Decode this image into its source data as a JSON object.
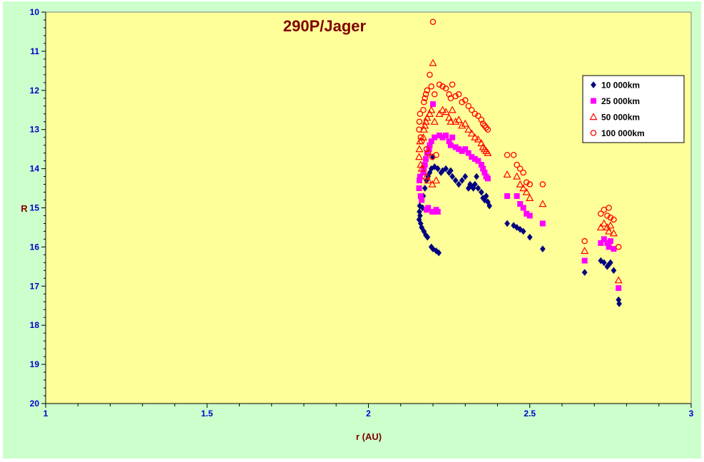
{
  "colors": {
    "outer_background": "#ccffcc",
    "plot_background": "#ffff99",
    "axis": "#000000",
    "tick_label": "#0000cc",
    "title": "#800000"
  },
  "chart_data": {
    "type": "scatter",
    "title": "290P/Jager",
    "xlabel": "r (AU)",
    "ylabel": "R",
    "xlim": [
      1,
      3
    ],
    "ylim": [
      10,
      20
    ],
    "y_inverted": true,
    "x_ticks": [
      "1",
      "1.5",
      "2",
      "2.5",
      "3"
    ],
    "y_ticks": [
      "10",
      "11",
      "12",
      "13",
      "14",
      "15",
      "16",
      "17",
      "18",
      "19",
      "20"
    ],
    "grid": false,
    "legend_position": "top-right",
    "series": [
      {
        "name": "10 000km",
        "marker": "diamond",
        "color": "#000080",
        "points": [
          [
            2.157,
            15.3
          ],
          [
            2.158,
            15.1
          ],
          [
            2.159,
            14.95
          ],
          [
            2.16,
            15.2
          ],
          [
            2.162,
            15.4
          ],
          [
            2.165,
            15.5
          ],
          [
            2.168,
            15.0
          ],
          [
            2.17,
            14.7
          ],
          [
            2.172,
            15.6
          ],
          [
            2.175,
            14.5
          ],
          [
            2.178,
            15.7
          ],
          [
            2.18,
            14.3
          ],
          [
            2.183,
            15.75
          ],
          [
            2.185,
            14.2
          ],
          [
            2.19,
            14.1
          ],
          [
            2.195,
            14.0
          ],
          [
            2.195,
            16.0
          ],
          [
            2.2,
            13.7
          ],
          [
            2.2,
            16.05
          ],
          [
            2.205,
            13.95
          ],
          [
            2.21,
            16.1
          ],
          [
            2.215,
            14.0
          ],
          [
            2.218,
            16.15
          ],
          [
            2.225,
            14.1
          ],
          [
            2.23,
            14.05
          ],
          [
            2.24,
            14.0
          ],
          [
            2.25,
            14.1
          ],
          [
            2.255,
            14.05
          ],
          [
            2.26,
            14.2
          ],
          [
            2.27,
            14.3
          ],
          [
            2.28,
            14.4
          ],
          [
            2.29,
            14.3
          ],
          [
            2.3,
            14.2
          ],
          [
            2.31,
            14.5
          ],
          [
            2.315,
            14.4
          ],
          [
            2.32,
            14.45
          ],
          [
            2.325,
            14.5
          ],
          [
            2.33,
            14.4
          ],
          [
            2.335,
            14.2
          ],
          [
            2.34,
            14.5
          ],
          [
            2.35,
            14.6
          ],
          [
            2.355,
            14.75
          ],
          [
            2.36,
            14.8
          ],
          [
            2.365,
            14.7
          ],
          [
            2.37,
            14.85
          ],
          [
            2.375,
            14.95
          ],
          [
            2.43,
            15.4
          ],
          [
            2.45,
            15.45
          ],
          [
            2.46,
            15.5
          ],
          [
            2.47,
            15.55
          ],
          [
            2.48,
            15.6
          ],
          [
            2.5,
            15.75
          ],
          [
            2.54,
            16.05
          ],
          [
            2.67,
            16.65
          ],
          [
            2.72,
            16.35
          ],
          [
            2.73,
            16.4
          ],
          [
            2.74,
            16.5
          ],
          [
            2.745,
            16.45
          ],
          [
            2.75,
            16.4
          ],
          [
            2.76,
            16.6
          ],
          [
            2.775,
            17.35
          ],
          [
            2.777,
            17.45
          ]
        ]
      },
      {
        "name": "25 000km",
        "marker": "square",
        "color": "#ff00ff",
        "points": [
          [
            2.157,
            14.5
          ],
          [
            2.158,
            14.3
          ],
          [
            2.16,
            14.2
          ],
          [
            2.162,
            14.7
          ],
          [
            2.165,
            14.8
          ],
          [
            2.17,
            14.1
          ],
          [
            2.172,
            14.0
          ],
          [
            2.175,
            13.9
          ],
          [
            2.178,
            13.75
          ],
          [
            2.18,
            15.05
          ],
          [
            2.182,
            13.6
          ],
          [
            2.185,
            15.0
          ],
          [
            2.188,
            13.5
          ],
          [
            2.19,
            13.4
          ],
          [
            2.195,
            13.3
          ],
          [
            2.198,
            15.1
          ],
          [
            2.2,
            12.35
          ],
          [
            2.205,
            13.2
          ],
          [
            2.21,
            15.05
          ],
          [
            2.215,
            15.1
          ],
          [
            2.22,
            13.15
          ],
          [
            2.23,
            13.2
          ],
          [
            2.24,
            13.15
          ],
          [
            2.25,
            13.3
          ],
          [
            2.255,
            13.4
          ],
          [
            2.26,
            13.2
          ],
          [
            2.27,
            13.45
          ],
          [
            2.28,
            13.5
          ],
          [
            2.29,
            13.55
          ],
          [
            2.3,
            13.5
          ],
          [
            2.31,
            13.6
          ],
          [
            2.32,
            13.7
          ],
          [
            2.33,
            13.75
          ],
          [
            2.34,
            13.8
          ],
          [
            2.35,
            13.9
          ],
          [
            2.355,
            14.0
          ],
          [
            2.36,
            14.1
          ],
          [
            2.365,
            14.2
          ],
          [
            2.37,
            14.25
          ],
          [
            2.43,
            14.7
          ],
          [
            2.46,
            14.7
          ],
          [
            2.47,
            14.9
          ],
          [
            2.48,
            15.0
          ],
          [
            2.49,
            15.15
          ],
          [
            2.5,
            15.2
          ],
          [
            2.54,
            15.4
          ],
          [
            2.67,
            16.35
          ],
          [
            2.72,
            15.9
          ],
          [
            2.73,
            15.8
          ],
          [
            2.74,
            15.9
          ],
          [
            2.745,
            16.0
          ],
          [
            2.75,
            15.85
          ],
          [
            2.76,
            16.05
          ],
          [
            2.775,
            17.05
          ]
        ]
      },
      {
        "name": "50 000km",
        "marker": "triangle",
        "color": "#ff0000",
        "points": [
          [
            2.157,
            13.7
          ],
          [
            2.158,
            13.5
          ],
          [
            2.16,
            13.3
          ],
          [
            2.162,
            13.9
          ],
          [
            2.165,
            14.0
          ],
          [
            2.17,
            13.2
          ],
          [
            2.172,
            13.0
          ],
          [
            2.175,
            12.9
          ],
          [
            2.178,
            12.8
          ],
          [
            2.18,
            14.2
          ],
          [
            2.182,
            12.7
          ],
          [
            2.185,
            14.3
          ],
          [
            2.19,
            12.6
          ],
          [
            2.195,
            12.5
          ],
          [
            2.198,
            14.4
          ],
          [
            2.2,
            11.3
          ],
          [
            2.205,
            12.8
          ],
          [
            2.21,
            14.3
          ],
          [
            2.22,
            12.6
          ],
          [
            2.23,
            12.5
          ],
          [
            2.24,
            12.55
          ],
          [
            2.25,
            12.7
          ],
          [
            2.255,
            12.8
          ],
          [
            2.26,
            12.5
          ],
          [
            2.27,
            12.8
          ],
          [
            2.28,
            12.75
          ],
          [
            2.29,
            12.9
          ],
          [
            2.3,
            12.85
          ],
          [
            2.31,
            13.0
          ],
          [
            2.32,
            13.1
          ],
          [
            2.33,
            13.2
          ],
          [
            2.34,
            13.25
          ],
          [
            2.35,
            13.35
          ],
          [
            2.355,
            13.45
          ],
          [
            2.36,
            13.5
          ],
          [
            2.365,
            13.55
          ],
          [
            2.37,
            13.6
          ],
          [
            2.43,
            14.15
          ],
          [
            2.46,
            14.2
          ],
          [
            2.47,
            14.4
          ],
          [
            2.48,
            14.5
          ],
          [
            2.49,
            14.6
          ],
          [
            2.5,
            14.75
          ],
          [
            2.54,
            14.9
          ],
          [
            2.67,
            16.1
          ],
          [
            2.72,
            15.5
          ],
          [
            2.73,
            15.4
          ],
          [
            2.74,
            15.5
          ],
          [
            2.745,
            15.6
          ],
          [
            2.75,
            15.45
          ],
          [
            2.76,
            15.65
          ],
          [
            2.775,
            16.85
          ]
        ]
      },
      {
        "name": "100 000km",
        "marker": "circle",
        "color": "#ff0000",
        "points": [
          [
            2.157,
            13.0
          ],
          [
            2.158,
            12.8
          ],
          [
            2.16,
            12.6
          ],
          [
            2.162,
            13.2
          ],
          [
            2.165,
            13.3
          ],
          [
            2.17,
            12.5
          ],
          [
            2.172,
            12.3
          ],
          [
            2.175,
            12.2
          ],
          [
            2.178,
            12.1
          ],
          [
            2.18,
            13.5
          ],
          [
            2.182,
            12.0
          ],
          [
            2.185,
            13.6
          ],
          [
            2.19,
            11.6
          ],
          [
            2.195,
            11.9
          ],
          [
            2.198,
            13.7
          ],
          [
            2.2,
            10.25
          ],
          [
            2.205,
            12.1
          ],
          [
            2.21,
            13.65
          ],
          [
            2.22,
            11.85
          ],
          [
            2.23,
            11.9
          ],
          [
            2.24,
            11.95
          ],
          [
            2.25,
            12.1
          ],
          [
            2.255,
            12.2
          ],
          [
            2.26,
            11.85
          ],
          [
            2.27,
            12.15
          ],
          [
            2.28,
            12.1
          ],
          [
            2.29,
            12.3
          ],
          [
            2.3,
            12.25
          ],
          [
            2.31,
            12.4
          ],
          [
            2.32,
            12.5
          ],
          [
            2.33,
            12.6
          ],
          [
            2.34,
            12.65
          ],
          [
            2.35,
            12.75
          ],
          [
            2.355,
            12.85
          ],
          [
            2.36,
            12.9
          ],
          [
            2.365,
            12.95
          ],
          [
            2.37,
            13.0
          ],
          [
            2.43,
            13.65
          ],
          [
            2.45,
            13.65
          ],
          [
            2.46,
            13.9
          ],
          [
            2.47,
            14.0
          ],
          [
            2.48,
            14.1
          ],
          [
            2.49,
            14.35
          ],
          [
            2.5,
            14.4
          ],
          [
            2.54,
            14.4
          ],
          [
            2.67,
            15.85
          ],
          [
            2.72,
            15.15
          ],
          [
            2.73,
            15.05
          ],
          [
            2.74,
            15.2
          ],
          [
            2.745,
            15.0
          ],
          [
            2.75,
            15.25
          ],
          [
            2.76,
            15.3
          ],
          [
            2.775,
            16.0
          ]
        ]
      }
    ]
  }
}
